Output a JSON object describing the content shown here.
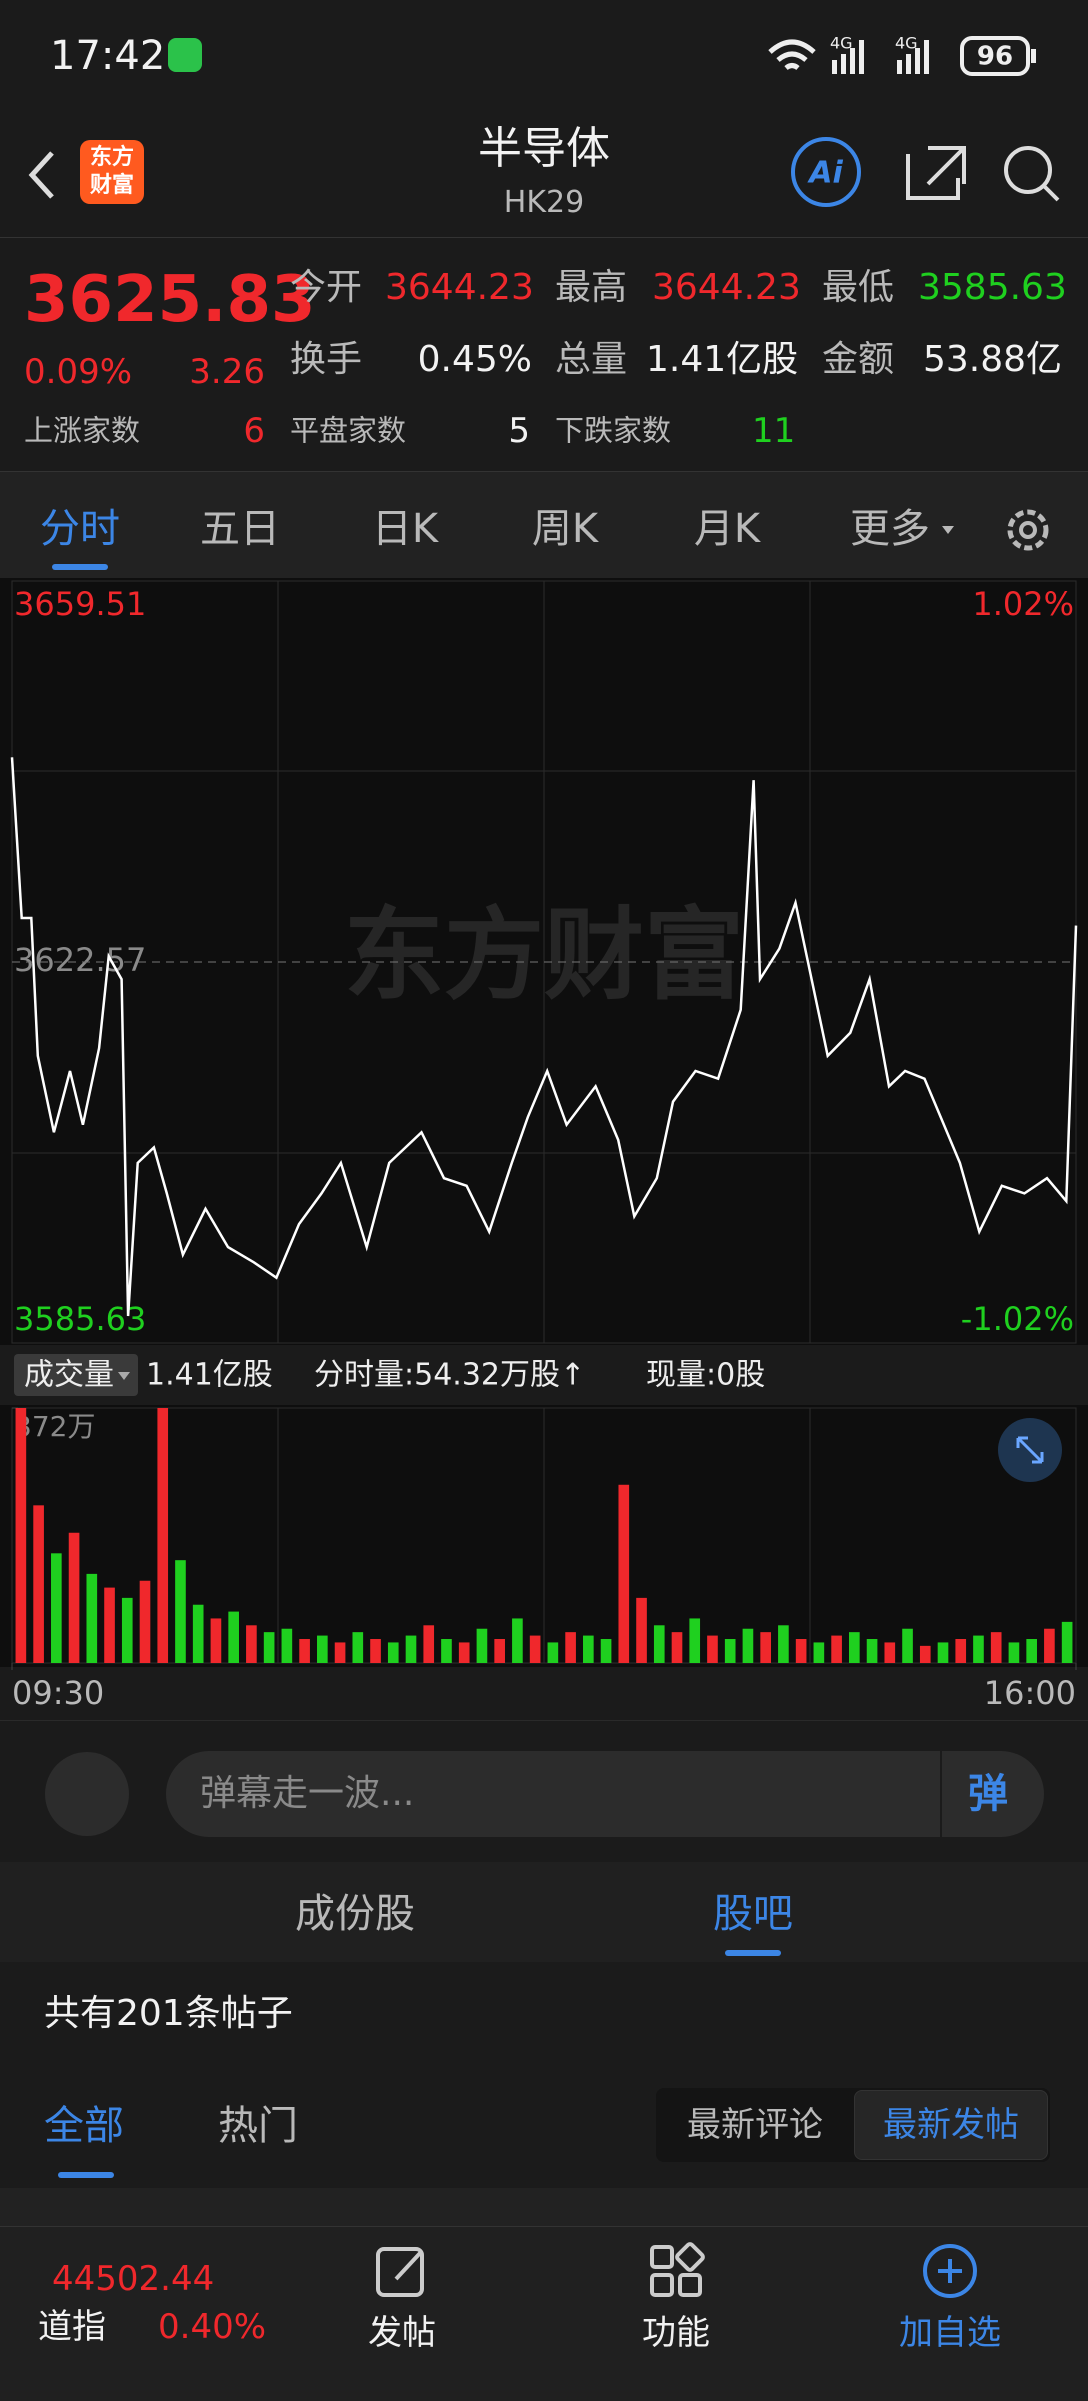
{
  "status_bar": {
    "time": "17:42",
    "network": [
      "4G",
      "4G"
    ],
    "battery": "96"
  },
  "header": {
    "logo": "东方财富",
    "title": "半导体",
    "code": "HK29",
    "ai": "Ai"
  },
  "quote": {
    "price": "3625.83",
    "change_pct": "0.09%",
    "change": "3.26",
    "stats": [
      {
        "label": "今开",
        "value": "3644.23"
      },
      {
        "label": "最高",
        "value": "3644.23"
      },
      {
        "label": "最低",
        "value": "3585.63"
      },
      {
        "label": "换手",
        "value": "0.45%"
      },
      {
        "label": "总量",
        "value": "1.41亿股"
      },
      {
        "label": "金额",
        "value": "53.88亿"
      }
    ],
    "breadth": [
      {
        "label": "上涨家数",
        "value": "6"
      },
      {
        "label": "平盘家数",
        "value": "5"
      },
      {
        "label": "下跌家数",
        "value": "11"
      }
    ]
  },
  "period_tabs": [
    "分时",
    "五日",
    "日K",
    "周K",
    "月K",
    "更多"
  ],
  "chart_data": [
    {
      "type": "line",
      "watermark": "东方财富",
      "color": "#ffffff",
      "x": [
        0,
        3,
        6,
        8,
        13,
        18,
        22,
        27,
        30,
        34,
        36,
        39,
        44,
        48,
        53,
        60,
        67,
        75,
        82,
        89,
        96,
        102,
        110,
        117,
        127,
        134,
        141,
        148,
        155,
        160,
        166,
        172,
        181,
        188,
        193,
        200,
        205,
        212,
        219,
        226,
        230,
        232,
        238,
        243,
        248,
        253,
        260,
        266,
        272,
        277,
        283,
        288,
        294,
        300,
        307,
        314,
        321,
        327,
        330
      ],
      "values": [
        3642.42,
        3626.84,
        3626.84,
        3613.48,
        3606.06,
        3612.0,
        3606.8,
        3614.22,
        3623.12,
        3620.9,
        3588.25,
        3603.09,
        3604.58,
        3600.13,
        3594.19,
        3598.64,
        3594.93,
        3593.45,
        3591.96,
        3597.16,
        3600.13,
        3603.09,
        3594.93,
        3603.09,
        3606.06,
        3601.61,
        3600.87,
        3596.42,
        3603.09,
        3607.55,
        3612.0,
        3606.8,
        3610.51,
        3605.32,
        3597.9,
        3601.61,
        3609.03,
        3612.0,
        3611.26,
        3617.94,
        3640.2,
        3620.9,
        3623.87,
        3628.32,
        3620.9,
        3613.48,
        3615.71,
        3620.9,
        3610.51,
        3612.0,
        3611.26,
        3607.55,
        3603.09,
        3596.42,
        3600.87,
        3600.13,
        3601.61,
        3599.39,
        3626.1
      ],
      "xlim": [
        0,
        330
      ],
      "xticks": [
        {
          "value": 0,
          "label": "09:30"
        },
        {
          "value": 330,
          "label": "16:00"
        }
      ],
      "ylim": [
        3585.63,
        3659.51
      ],
      "yticks": [
        3585.63,
        3622.57,
        3659.51
      ],
      "y2lim": [
        -1.02,
        1.02
      ],
      "y2ticks": [
        {
          "value": -1.02,
          "label": "-1.02%"
        },
        {
          "value": 1.02,
          "label": "1.02%"
        }
      ],
      "tick_colors": {
        "up": "#f0282c",
        "flat": "#8a8a8a",
        "down": "#1fd01f"
      }
    },
    {
      "type": "bar",
      "title": "成交量",
      "summary": [
        "1.41亿股",
        "分时量:54.32万股↑",
        "现量:0股"
      ],
      "values": [
        372,
        230,
        160,
        190,
        130,
        110,
        95,
        120,
        372,
        150,
        85,
        65,
        75,
        55,
        45,
        50,
        35,
        40,
        30,
        45,
        35,
        30,
        40,
        55,
        35,
        30,
        50,
        35,
        65,
        40,
        30,
        45,
        40,
        35,
        260,
        95,
        55,
        45,
        65,
        40,
        35,
        50,
        45,
        55,
        35,
        30,
        40,
        45,
        35,
        30,
        50,
        25,
        30,
        35,
        40,
        45,
        30,
        35,
        50,
        60
      ],
      "colors": [
        "#f0282c",
        "#f0282c",
        "#1fd01f",
        "#f0282c",
        "#1fd01f",
        "#f0282c",
        "#1fd01f",
        "#f0282c",
        "#f0282c",
        "#1fd01f",
        "#1fd01f",
        "#f0282c",
        "#1fd01f",
        "#f0282c",
        "#1fd01f",
        "#1fd01f",
        "#f0282c",
        "#1fd01f",
        "#f0282c",
        "#1fd01f",
        "#f0282c",
        "#1fd01f",
        "#1fd01f",
        "#f0282c",
        "#1fd01f",
        "#f0282c",
        "#1fd01f",
        "#f0282c",
        "#1fd01f",
        "#f0282c",
        "#1fd01f",
        "#f0282c",
        "#1fd01f",
        "#1fd01f",
        "#f0282c",
        "#f0282c",
        "#1fd01f",
        "#f0282c",
        "#1fd01f",
        "#f0282c",
        "#1fd01f",
        "#1fd01f",
        "#f0282c",
        "#1fd01f",
        "#f0282c",
        "#1fd01f",
        "#f0282c",
        "#1fd01f",
        "#1fd01f",
        "#f0282c",
        "#1fd01f",
        "#f0282c",
        "#1fd01f",
        "#f0282c",
        "#1fd01f",
        "#f0282c",
        "#1fd01f",
        "#1fd01f",
        "#f0282c",
        "#1fd01f"
      ],
      "ylim": [
        0,
        372
      ],
      "yticks": [
        {
          "value": 372,
          "label": "372万"
        }
      ]
    }
  ],
  "danmu": {
    "placeholder": "弹幕走一波...",
    "button": "弹"
  },
  "section_tabs": [
    "成份股",
    "股吧"
  ],
  "post_count": "共有201条帖子",
  "filters": [
    "全部",
    "热门"
  ],
  "sort": [
    "最新评论",
    "最新发帖"
  ],
  "bottom_bar": {
    "index_value": "44502.44",
    "index_name": "道指",
    "index_change": "0.40%",
    "actions": [
      "发帖",
      "功能",
      "加自选"
    ]
  }
}
